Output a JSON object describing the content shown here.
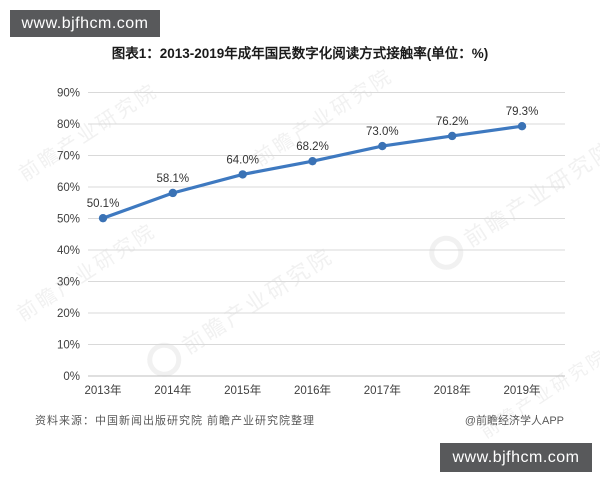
{
  "banners": {
    "top_left": "www.bjfhcm.com",
    "bottom_right": "www.bjfhcm.com"
  },
  "title": "图表1：2013-2019年成年国民数字化阅读方式接触率(单位：%)",
  "source_note": "资料来源：中国新闻出版研究院 前瞻产业研究院整理",
  "credit": "@前瞻经济学人APP",
  "watermark_text": "前瞻产业研究院",
  "colors": {
    "line": "#3e79c0",
    "marker": "#3a72b5",
    "banner_bg": "#58595b",
    "grid": "#d9d9d9",
    "baseline": "#bfbfbf",
    "axis_text": "#404040",
    "data_label": "#333333"
  },
  "chart_data": {
    "type": "line",
    "title": "图表1：2013-2019年成年国民数字化阅读方式接触率(单位：%)",
    "categories": [
      "2013年",
      "2014年",
      "2015年",
      "2016年",
      "2017年",
      "2018年",
      "2019年"
    ],
    "values": [
      50.1,
      58.1,
      64.0,
      68.2,
      73.0,
      76.2,
      79.3
    ],
    "data_labels": [
      "50.1%",
      "58.1%",
      "64.0%",
      "68.2%",
      "73.0%",
      "76.2%",
      "79.3%"
    ],
    "xlabel": "",
    "ylabel": "",
    "ylim": [
      0,
      90
    ],
    "ytick_step": 10,
    "ytick_labels": [
      "0%",
      "10%",
      "20%",
      "30%",
      "40%",
      "50%",
      "60%",
      "70%",
      "80%",
      "90%"
    ],
    "grid": true,
    "legend": false,
    "marker": "circle"
  }
}
